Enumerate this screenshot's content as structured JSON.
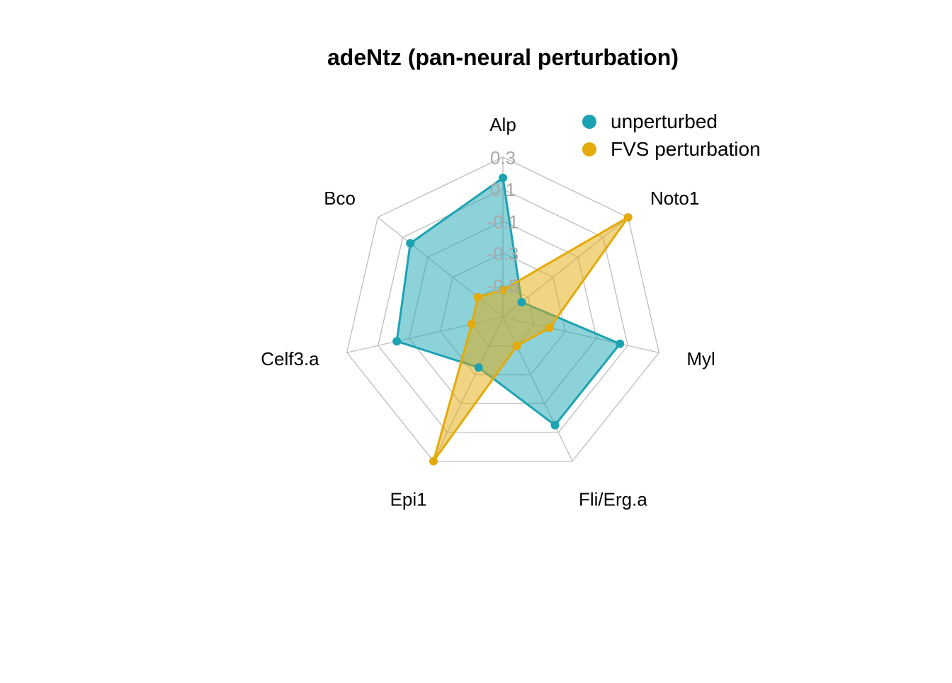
{
  "chart_data": {
    "type": "radar",
    "title": "adeNtz (pan-neural perturbation)",
    "axes": [
      "Alp",
      "Noto1",
      "Myl",
      "Fli/Erg.a",
      "Epi1",
      "Celf3.a",
      "Bco"
    ],
    "rlim": [
      -0.7,
      0.3
    ],
    "ring_ticks": [
      0.3,
      0.1,
      -0.1,
      -0.3,
      -0.5
    ],
    "ring_tick_labels": [
      "0.3",
      "0.1",
      "-0.1",
      "-0.3",
      "-0.5"
    ],
    "grid": true,
    "legend_position": "top-right",
    "series": [
      {
        "name": "unperturbed",
        "color": "#1BA3B3",
        "values": [
          0.17,
          -0.55,
          0.05,
          0.05,
          -0.35,
          -0.02,
          0.04
        ]
      },
      {
        "name": "FVS perturbation",
        "color": "#E3AA0A",
        "values": [
          -0.53,
          0.3,
          -0.4,
          -0.5,
          0.3,
          -0.5,
          -0.5
        ]
      }
    ]
  }
}
